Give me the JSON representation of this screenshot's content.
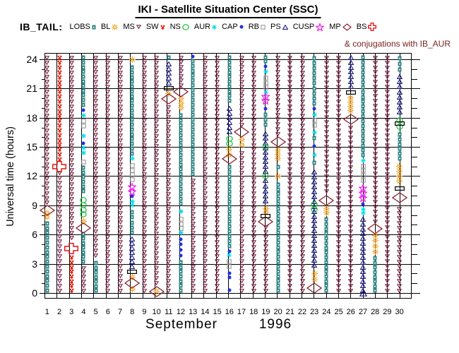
{
  "title": "IKI - Satellite Situation Center (SSC)",
  "legend": {
    "prefix": "IB_TAIL:",
    "items": [
      {
        "label": "LOBS",
        "symbol": "lobs"
      },
      {
        "label": "BL",
        "symbol": "bl"
      },
      {
        "label": "MS",
        "symbol": "ms"
      },
      {
        "label": "SW",
        "symbol": "sw"
      },
      {
        "label": "NS",
        "symbol": "ns"
      },
      {
        "label": "AUR",
        "symbol": "aur"
      },
      {
        "label": "CAP",
        "symbol": "cap"
      },
      {
        "label": "RB",
        "symbol": "rb"
      },
      {
        "label": "PS",
        "symbol": "ps"
      },
      {
        "label": "CUSP",
        "symbol": "cusp"
      },
      {
        "label": "MP",
        "symbol": "mp"
      },
      {
        "label": "BS",
        "symbol": "bs"
      }
    ],
    "note": "& conjugations with IB_AUR"
  },
  "axes": {
    "y_label": "Universal time (hours)",
    "y_ticks": [
      0,
      3,
      6,
      9,
      12,
      15,
      18,
      21,
      24
    ],
    "y_min": 0,
    "y_max": 24,
    "x_ticks": [
      1,
      2,
      3,
      4,
      5,
      6,
      7,
      8,
      9,
      10,
      11,
      12,
      13,
      14,
      15,
      16,
      17,
      18,
      19,
      20,
      21,
      22,
      23,
      24,
      25,
      26,
      27,
      28,
      29,
      30
    ],
    "month_label": "September",
    "year_label": "1996"
  },
  "colors": {
    "lobs": "#2e8585",
    "bl": "#efa020",
    "ms": "#7a2545",
    "sw": "#e82010",
    "ns": "#10c030",
    "aur": "#00dff0",
    "cap": "#2030e0",
    "rb": "#999999",
    "ps": "#181880",
    "cusp": "#f020f0",
    "mp": "#8b2030",
    "bs": "#e01010",
    "bar": "#000000",
    "ps_big": "#181880",
    "note_text": "#7b2020"
  },
  "chart_data": {
    "type": "region-timeline",
    "title": "IKI - Satellite Situation Center (SSC)",
    "spacecraft": "IB_TAIL",
    "period": "September 1996",
    "y_axis": {
      "label": "Universal time (hours)",
      "min": 0,
      "max": 24,
      "grid_step": 3
    },
    "region_codes": [
      "LOBS",
      "BL",
      "MS",
      "SW",
      "NS",
      "AUR",
      "CAP",
      "RB",
      "PS",
      "CUSP",
      "MP",
      "BS"
    ],
    "days": [
      {
        "day": 1,
        "segments": [
          [
            "lobs",
            0,
            7.4
          ],
          [
            "bl",
            7.6,
            8.4
          ],
          [
            "ms",
            9.0,
            24.4
          ]
        ],
        "markers": [
          [
            "mp",
            8.45
          ]
        ]
      },
      {
        "day": 2,
        "segments": [
          [
            "ms",
            0,
            12.6
          ],
          [
            "sw",
            13.5,
            24.4
          ]
        ],
        "markers": [
          [
            "bs",
            13.0
          ]
        ]
      },
      {
        "day": 3,
        "segments": [
          [
            "sw",
            0,
            3.9
          ],
          [
            "ms",
            5.4,
            24.4
          ]
        ],
        "markers": [
          [
            "bs",
            4.55
          ]
        ]
      },
      {
        "day": 4,
        "segments": [
          [
            "ms",
            0,
            2.8
          ],
          [
            "lobs",
            3.0,
            6.3
          ],
          [
            "bl",
            7.1,
            7.6
          ],
          [
            "ns",
            7.8,
            9.8
          ],
          [
            "lobs",
            10.2,
            13.1
          ],
          [
            "rb",
            13.3,
            13.6
          ],
          [
            "aur",
            14.2,
            15.1
          ],
          [
            "cap",
            15.3,
            15.5
          ],
          [
            "aur",
            16.0,
            16.2
          ],
          [
            "rb",
            16.9,
            17.9
          ],
          [
            "aur",
            18.1,
            18.3
          ],
          [
            "cap",
            18.7,
            18.9
          ],
          [
            "lobs",
            19.1,
            24.4
          ]
        ],
        "markers": [
          [
            "mp",
            6.7
          ]
        ]
      },
      {
        "day": 5,
        "segments": [
          [
            "lobs",
            0,
            3.3
          ],
          [
            "ms",
            3.6,
            24.4
          ]
        ],
        "markers": []
      },
      {
        "day": 6,
        "segments": [
          [
            "ms",
            0,
            24.4
          ]
        ],
        "markers": []
      },
      {
        "day": 7,
        "segments": [
          [
            "ms",
            0,
            24.4
          ]
        ],
        "markers": []
      },
      {
        "day": 8,
        "segments": [
          [
            "bl",
            0.2,
            0.6
          ],
          [
            "bl",
            1.4,
            1.8
          ],
          [
            "ps",
            2.5,
            5.8
          ],
          [
            "lobs",
            5.9,
            8.6
          ],
          [
            "aur",
            8.8,
            9.6
          ],
          [
            "cap",
            9.8,
            10.1
          ],
          [
            "cusp",
            10.1,
            11.2
          ],
          [
            "rb",
            11.4,
            13.3
          ],
          [
            "aur",
            13.7,
            13.9
          ],
          [
            "lobs",
            14.1,
            23.4
          ],
          [
            "bl",
            23.6,
            24.3
          ]
        ],
        "markers": [
          [
            "mp",
            1.05
          ],
          [
            "bar",
            2.2
          ]
        ]
      },
      {
        "day": 9,
        "segments": [
          [
            "ms",
            0,
            24.4
          ]
        ],
        "markers": []
      },
      {
        "day": 10,
        "segments": [
          [
            "bl",
            0.0,
            0.3
          ],
          [
            "ms",
            0.8,
            24.4
          ]
        ],
        "markers": [
          [
            "mp",
            0.15
          ]
        ]
      },
      {
        "day": 11,
        "segments": [
          [
            "ms",
            0,
            19.3
          ],
          [
            "bl",
            20.3,
            20.7
          ],
          [
            "ps",
            21.3,
            23.8
          ],
          [
            "lobs",
            24.0,
            24.4
          ]
        ],
        "markers": [
          [
            "mp",
            19.95
          ],
          [
            "bar",
            21.0
          ]
        ]
      },
      {
        "day": 12,
        "segments": [
          [
            "lobs",
            0,
            3.4
          ],
          [
            "cap",
            3.6,
            5.8
          ],
          [
            "aur",
            6.1,
            6.3
          ],
          [
            "rb",
            6.4,
            7.8
          ],
          [
            "aur",
            8.1,
            8.6
          ],
          [
            "lobs",
            8.9,
            18.5
          ],
          [
            "bl",
            18.8,
            20.2
          ],
          [
            "ms",
            21.1,
            24.4
          ]
        ],
        "markers": [
          [
            "mp",
            20.65
          ]
        ]
      },
      {
        "day": 13,
        "segments": [
          [
            "ms",
            0,
            11.8
          ],
          [
            "lobs",
            12.0,
            24.1
          ],
          [
            "cap",
            24.2,
            24.45
          ]
        ],
        "markers": []
      },
      {
        "day": 14,
        "segments": [
          [
            "ms",
            0,
            24.4
          ]
        ],
        "markers": []
      },
      {
        "day": 15,
        "segments": [
          [
            "ms",
            0,
            24.4
          ]
        ],
        "markers": []
      },
      {
        "day": 16,
        "segments": [
          [
            "cap",
            0.2,
            0.4
          ],
          [
            "cap",
            1.4,
            2.2
          ],
          [
            "rb",
            2.5,
            3.5
          ],
          [
            "aur",
            3.7,
            4.0
          ],
          [
            "cap",
            4.2,
            4.4
          ],
          [
            "lobs",
            4.6,
            13.2
          ],
          [
            "bl",
            13.9,
            15.0
          ],
          [
            "ns",
            15.1,
            16.1
          ],
          [
            "ps",
            16.3,
            19.2
          ],
          [
            "lobs",
            19.5,
            24.4
          ]
        ],
        "markers": [
          [
            "mp",
            13.75
          ]
        ]
      },
      {
        "day": 17,
        "segments": [
          [
            "ms",
            0,
            14.6
          ],
          [
            "bl",
            14.9,
            16.1
          ],
          [
            "ms",
            17.0,
            24.4
          ]
        ],
        "markers": [
          [
            "mp",
            16.5
          ]
        ]
      },
      {
        "day": 18,
        "segments": [
          [
            "ms",
            0,
            24.4
          ]
        ],
        "markers": []
      },
      {
        "day": 19,
        "segments": [
          [
            "ms",
            0,
            7.0
          ],
          [
            "bl",
            8.1,
            8.9
          ],
          [
            "ps",
            9.2,
            11.8
          ],
          [
            "ns",
            11.9,
            12.1
          ],
          [
            "ps",
            12.3,
            16.6
          ],
          [
            "ns",
            14.6,
            15.3
          ],
          [
            "lobs",
            17.0,
            18.6
          ],
          [
            "cap",
            18.8,
            19.0
          ],
          [
            "cusp",
            19.5,
            20.4
          ],
          [
            "aur",
            20.5,
            20.7
          ],
          [
            "rb",
            20.9,
            22.3
          ],
          [
            "aur",
            22.5,
            23.0
          ],
          [
            "cap",
            23.2,
            23.4
          ],
          [
            "lobs",
            23.6,
            24.4
          ]
        ],
        "markers": [
          [
            "mp",
            7.35
          ],
          [
            "bar",
            7.9
          ]
        ]
      },
      {
        "day": 20,
        "segments": [
          [
            "lobs",
            0,
            11.4
          ],
          [
            "bl",
            11.7,
            12.3
          ],
          [
            "lobs",
            12.6,
            13.3
          ],
          [
            "bl",
            13.6,
            14.9
          ],
          [
            "ms",
            16.1,
            24.4
          ]
        ],
        "markers": [
          [
            "mp",
            15.55
          ]
        ]
      },
      {
        "day": 21,
        "segments": [
          [
            "ms",
            0,
            24.4
          ]
        ],
        "markers": []
      },
      {
        "day": 22,
        "segments": [
          [
            "ms",
            0,
            24.4
          ]
        ],
        "markers": []
      },
      {
        "day": 23,
        "segments": [
          [
            "bl",
            1.1,
            2.3
          ],
          [
            "ps",
            2.6,
            12.7
          ],
          [
            "ns",
            8.3,
            9.4
          ],
          [
            "lobs",
            13.0,
            13.7
          ],
          [
            "aur",
            13.9,
            14.5
          ],
          [
            "cap",
            14.8,
            15.3
          ],
          [
            "lobs",
            15.6,
            16.2
          ],
          [
            "aur",
            16.4,
            16.6
          ],
          [
            "rb",
            17.0,
            18.0
          ],
          [
            "aur",
            18.2,
            18.4
          ],
          [
            "cap",
            18.8,
            19.0
          ],
          [
            "lobs",
            19.2,
            24.4
          ]
        ],
        "markers": [
          [
            "mp",
            0.5
          ]
        ]
      },
      {
        "day": 24,
        "segments": [
          [
            "lobs",
            0,
            7.8
          ],
          [
            "bl",
            8.0,
            8.9
          ],
          [
            "ms",
            10.2,
            24.4
          ]
        ],
        "markers": [
          [
            "mp",
            9.5
          ]
        ]
      },
      {
        "day": 25,
        "segments": [
          [
            "ms",
            0,
            24.4
          ]
        ],
        "markers": []
      },
      {
        "day": 26,
        "segments": [
          [
            "ms",
            0,
            17.2
          ],
          [
            "bl",
            18.5,
            20.3
          ],
          [
            "ps",
            21.0,
            24.4
          ]
        ],
        "markers": [
          [
            "mp",
            17.85
          ],
          [
            "bar",
            20.6
          ]
        ]
      },
      {
        "day": 27,
        "segments": [
          [
            "ps",
            0,
            7.8
          ],
          [
            "aur",
            8.0,
            8.8
          ],
          [
            "cap",
            9.0,
            9.3
          ],
          [
            "cusp",
            9.5,
            11.0
          ],
          [
            "rb",
            11.3,
            13.3
          ],
          [
            "aur",
            13.5,
            13.7
          ],
          [
            "lobs",
            13.9,
            24.4
          ]
        ],
        "markers": [
          [
            "ps_big",
            0.0
          ]
        ]
      },
      {
        "day": 28,
        "segments": [
          [
            "lobs",
            0,
            3.8
          ],
          [
            "bl",
            4.0,
            6.2
          ],
          [
            "ms",
            7.1,
            24.4
          ]
        ],
        "markers": [
          [
            "mp",
            6.6
          ]
        ]
      },
      {
        "day": 29,
        "segments": [
          [
            "ms",
            0,
            24.4
          ]
        ],
        "markers": []
      },
      {
        "day": 30,
        "segments": [
          [
            "ms",
            0,
            8.9
          ],
          [
            "bl",
            11.2,
            13.3
          ],
          [
            "lobs",
            13.6,
            16.5
          ],
          [
            "ns",
            16.8,
            18.0
          ],
          [
            "ps",
            18.3,
            22.5
          ],
          [
            "lobs",
            22.7,
            24.4
          ]
        ],
        "markers": [
          [
            "mp",
            9.8
          ],
          [
            "bar",
            10.75
          ],
          [
            "bar",
            17.4
          ]
        ]
      }
    ]
  }
}
